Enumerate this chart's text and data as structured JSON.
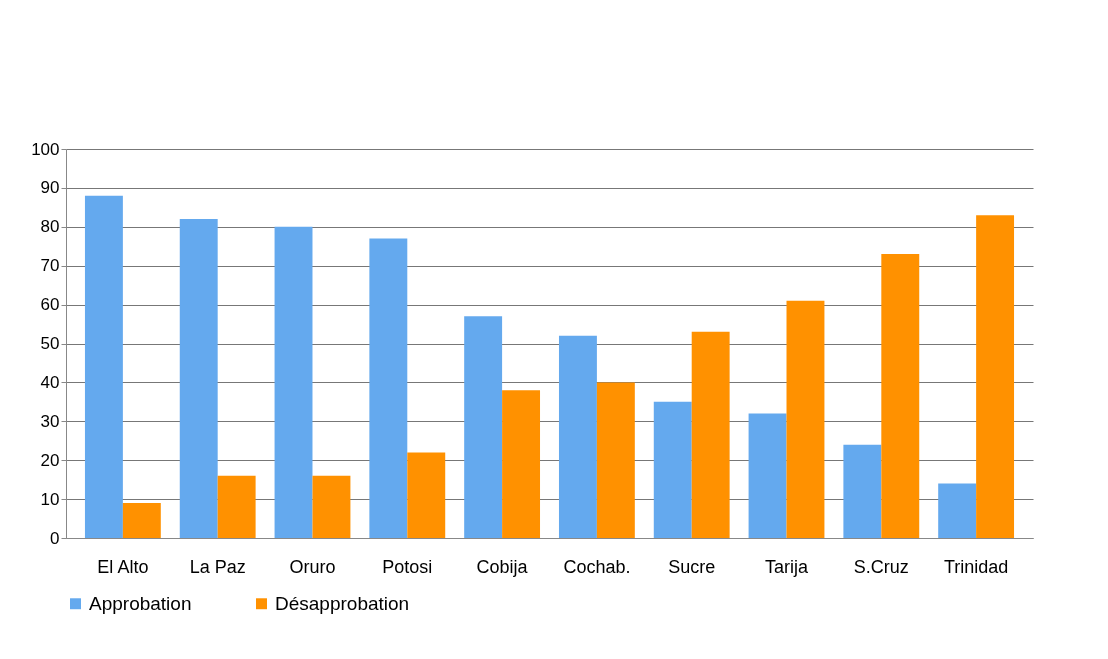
{
  "chart_data": {
    "type": "bar",
    "categories": [
      "El Alto",
      "La Paz",
      "Oruro",
      "Potosi",
      "Cobija",
      "Cochab.",
      "Sucre",
      "Tarija",
      "S.Cruz",
      "Trinidad"
    ],
    "series": [
      {
        "name": "Approbation",
        "color": "#64a9ee",
        "values": [
          88,
          82,
          80,
          77,
          57,
          52,
          35,
          32,
          24,
          14
        ]
      },
      {
        "name": "Désapprobation",
        "color": "#ff9100",
        "values": [
          9,
          16,
          16,
          22,
          38,
          40,
          53,
          61,
          73,
          83
        ]
      }
    ],
    "ylim": [
      0,
      100
    ],
    "yticks": [
      0,
      10,
      20,
      30,
      40,
      50,
      60,
      70,
      80,
      90,
      100
    ],
    "grid": "y",
    "legend": "bottom"
  }
}
